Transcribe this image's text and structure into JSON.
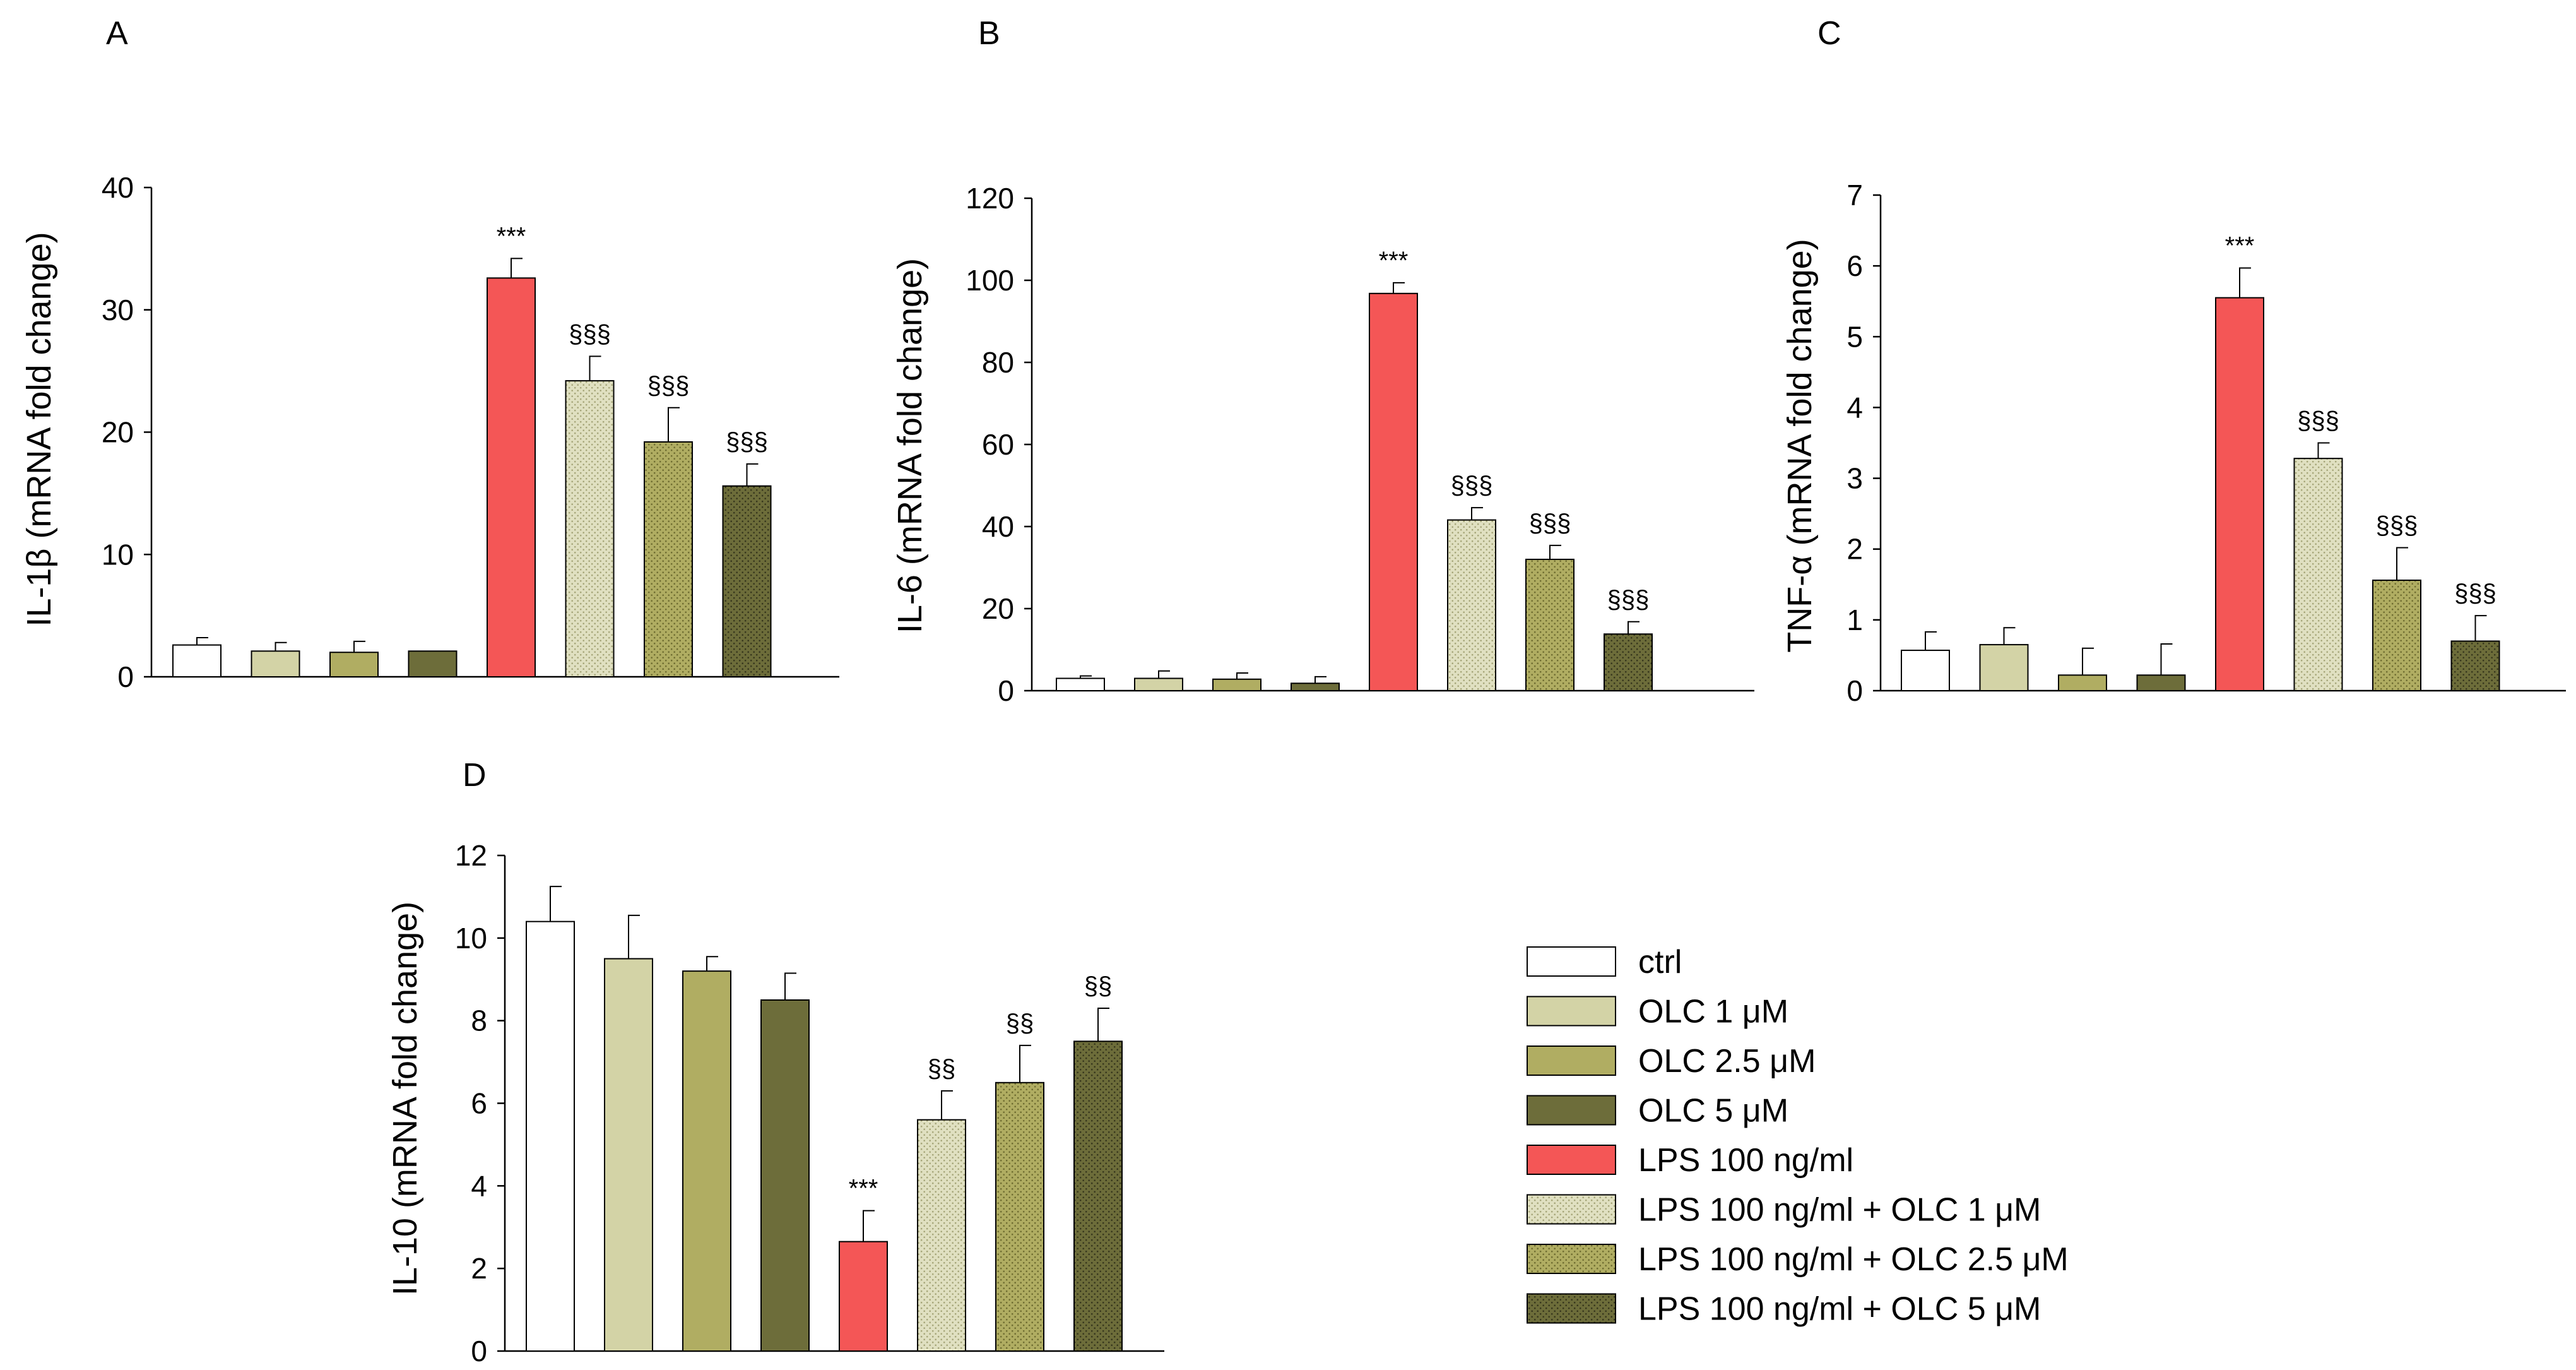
{
  "legend": [
    {
      "label": "ctrl",
      "pattern": "white"
    },
    {
      "label": "OLC 1 μM",
      "pattern": "olc1"
    },
    {
      "label": "OLC 2.5 μM",
      "pattern": "olc25"
    },
    {
      "label": "OLC 5 μM",
      "pattern": "olc5"
    },
    {
      "label": "LPS 100 ng/ml",
      "pattern": "lps"
    },
    {
      "label": "LPS 100 ng/ml + OLC 1 μM",
      "pattern": "lpsolc1"
    },
    {
      "label": "LPS 100 ng/ml + OLC 2.5 μM",
      "pattern": "lpsolc25"
    },
    {
      "label": "LPS 100 ng/ml + OLC 5 μM",
      "pattern": "lpsolc5"
    }
  ],
  "colors": {
    "white": "#ffffff",
    "olc1": "#d3d3a6",
    "olc25": "#b0ad62",
    "olc5": "#6d6d3a",
    "lps": "#f45656",
    "lpsolc1_bg": "#e0e0c1",
    "lpsolc1_dot": "#a5a578",
    "lpsolc25_bg": "#b0ad62",
    "lpsolc25_dot": "#6e6c30",
    "lpsolc5_bg": "#6d6d3a",
    "lpsolc5_dot": "#36361c"
  },
  "chart_data": [
    {
      "panel": "A",
      "type": "bar",
      "ylabel": "IL-1β (mRNA fold change)",
      "ylim": [
        0,
        40
      ],
      "yticks": [
        0,
        10,
        20,
        30,
        40
      ],
      "values": [
        2.6,
        2.1,
        2.0,
        2.1,
        32.6,
        24.2,
        19.2,
        15.6
      ],
      "errors": [
        0.6,
        0.7,
        0.9,
        0,
        1.6,
        2.0,
        2.8,
        1.8
      ],
      "significance": [
        "",
        "",
        "",
        "",
        "***",
        "§§§",
        "§§§",
        "§§§"
      ]
    },
    {
      "panel": "B",
      "type": "bar",
      "ylabel": "IL-6 (mRNA fold change)",
      "ylim": [
        0,
        120
      ],
      "yticks": [
        0,
        20,
        40,
        60,
        80,
        100,
        120
      ],
      "values": [
        3.0,
        3.0,
        2.8,
        1.8,
        96.8,
        41.6,
        32.0,
        13.8
      ],
      "errors": [
        0.6,
        1.8,
        1.5,
        1.6,
        2.6,
        3.0,
        3.4,
        3.0
      ],
      "significance": [
        "",
        "",
        "",
        "",
        "***",
        "§§§",
        "§§§",
        "§§§"
      ]
    },
    {
      "panel": "C",
      "type": "bar",
      "ylabel": "TNF-α (mRNA fold change)",
      "ylim": [
        0,
        7
      ],
      "yticks": [
        0,
        1,
        2,
        3,
        4,
        5,
        6,
        7
      ],
      "values": [
        0.57,
        0.65,
        0.22,
        0.22,
        5.55,
        3.28,
        1.56,
        0.7
      ],
      "errors": [
        0.26,
        0.24,
        0.38,
        0.44,
        0.42,
        0.22,
        0.46,
        0.36
      ],
      "significance": [
        "",
        "",
        "",
        "",
        "***",
        "§§§",
        "§§§",
        "§§§"
      ]
    },
    {
      "panel": "D",
      "type": "bar",
      "ylabel": "IL-10 (mRNA fold change)",
      "ylim": [
        0,
        12
      ],
      "yticks": [
        0,
        2,
        4,
        6,
        8,
        10,
        12
      ],
      "values": [
        10.4,
        9.5,
        9.2,
        8.5,
        2.65,
        5.6,
        6.5,
        7.5
      ],
      "errors": [
        0.85,
        1.05,
        0.35,
        0.65,
        0.75,
        0.7,
        0.9,
        0.8
      ],
      "significance": [
        "",
        "",
        "",
        "",
        "***",
        "§§",
        "§§",
        "§§"
      ]
    }
  ]
}
